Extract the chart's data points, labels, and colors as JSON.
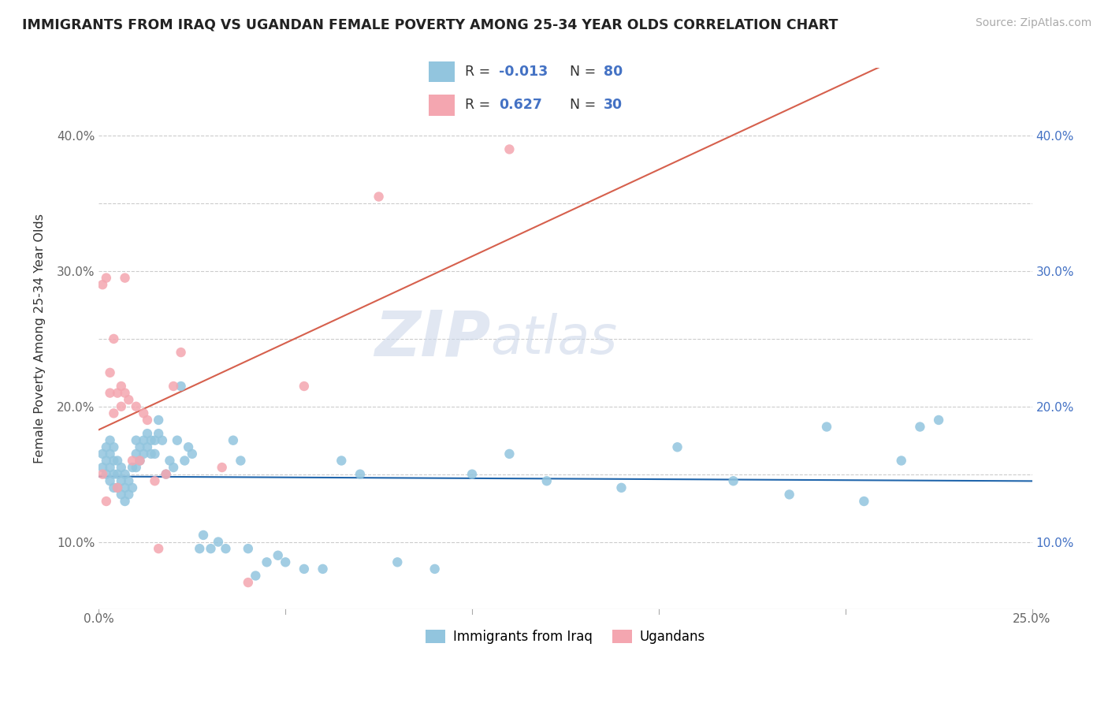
{
  "title": "IMMIGRANTS FROM IRAQ VS UGANDAN FEMALE POVERTY AMONG 25-34 YEAR OLDS CORRELATION CHART",
  "source": "Source: ZipAtlas.com",
  "ylabel": "Female Poverty Among 25-34 Year Olds",
  "xlim": [
    0.0,
    0.25
  ],
  "ylim": [
    0.05,
    0.45
  ],
  "x_ticks": [
    0.0,
    0.05,
    0.1,
    0.15,
    0.2,
    0.25
  ],
  "y_ticks": [
    0.1,
    0.15,
    0.2,
    0.25,
    0.3,
    0.35,
    0.4
  ],
  "right_y_ticks": [
    0.1,
    0.2,
    0.3,
    0.4
  ],
  "right_y_tick_labels": [
    "10.0%",
    "20.0%",
    "30.0%",
    "40.0%"
  ],
  "iraq_color": "#92c5de",
  "ugandan_color": "#f4a6b0",
  "iraq_line_color": "#2166ac",
  "ugandan_line_color": "#d6604d",
  "r_iraq": -0.013,
  "n_iraq": 80,
  "r_ugandan": 0.627,
  "n_ugandan": 30,
  "watermark_zip": "ZIP",
  "watermark_atlas": "atlas",
  "legend_label_iraq": "Immigrants from Iraq",
  "legend_label_ugandan": "Ugandans",
  "iraq_points_x": [
    0.001,
    0.001,
    0.002,
    0.002,
    0.002,
    0.003,
    0.003,
    0.003,
    0.003,
    0.004,
    0.004,
    0.004,
    0.004,
    0.005,
    0.005,
    0.005,
    0.006,
    0.006,
    0.006,
    0.007,
    0.007,
    0.007,
    0.008,
    0.008,
    0.009,
    0.009,
    0.01,
    0.01,
    0.01,
    0.011,
    0.011,
    0.012,
    0.012,
    0.013,
    0.013,
    0.014,
    0.014,
    0.015,
    0.015,
    0.016,
    0.016,
    0.017,
    0.018,
    0.019,
    0.02,
    0.021,
    0.022,
    0.023,
    0.024,
    0.025,
    0.027,
    0.028,
    0.03,
    0.032,
    0.034,
    0.036,
    0.038,
    0.04,
    0.042,
    0.045,
    0.048,
    0.05,
    0.055,
    0.06,
    0.065,
    0.07,
    0.08,
    0.09,
    0.1,
    0.11,
    0.12,
    0.14,
    0.155,
    0.17,
    0.185,
    0.195,
    0.205,
    0.215,
    0.22,
    0.225
  ],
  "iraq_points_y": [
    0.155,
    0.165,
    0.15,
    0.16,
    0.17,
    0.145,
    0.155,
    0.165,
    0.175,
    0.14,
    0.15,
    0.16,
    0.17,
    0.14,
    0.15,
    0.16,
    0.135,
    0.145,
    0.155,
    0.13,
    0.14,
    0.15,
    0.135,
    0.145,
    0.14,
    0.155,
    0.155,
    0.165,
    0.175,
    0.16,
    0.17,
    0.165,
    0.175,
    0.17,
    0.18,
    0.165,
    0.175,
    0.165,
    0.175,
    0.18,
    0.19,
    0.175,
    0.15,
    0.16,
    0.155,
    0.175,
    0.215,
    0.16,
    0.17,
    0.165,
    0.095,
    0.105,
    0.095,
    0.1,
    0.095,
    0.175,
    0.16,
    0.095,
    0.075,
    0.085,
    0.09,
    0.085,
    0.08,
    0.08,
    0.16,
    0.15,
    0.085,
    0.08,
    0.15,
    0.165,
    0.145,
    0.14,
    0.17,
    0.145,
    0.135,
    0.185,
    0.13,
    0.16,
    0.185,
    0.19
  ],
  "ugandan_points_x": [
    0.001,
    0.001,
    0.002,
    0.002,
    0.003,
    0.003,
    0.004,
    0.004,
    0.005,
    0.005,
    0.006,
    0.006,
    0.007,
    0.007,
    0.008,
    0.009,
    0.01,
    0.011,
    0.012,
    0.013,
    0.015,
    0.016,
    0.018,
    0.02,
    0.022,
    0.033,
    0.04,
    0.055,
    0.075,
    0.11
  ],
  "ugandan_points_y": [
    0.15,
    0.29,
    0.13,
    0.295,
    0.21,
    0.225,
    0.195,
    0.25,
    0.14,
    0.21,
    0.215,
    0.2,
    0.21,
    0.295,
    0.205,
    0.16,
    0.2,
    0.16,
    0.195,
    0.19,
    0.145,
    0.095,
    0.15,
    0.215,
    0.24,
    0.155,
    0.07,
    0.215,
    0.355,
    0.39
  ]
}
